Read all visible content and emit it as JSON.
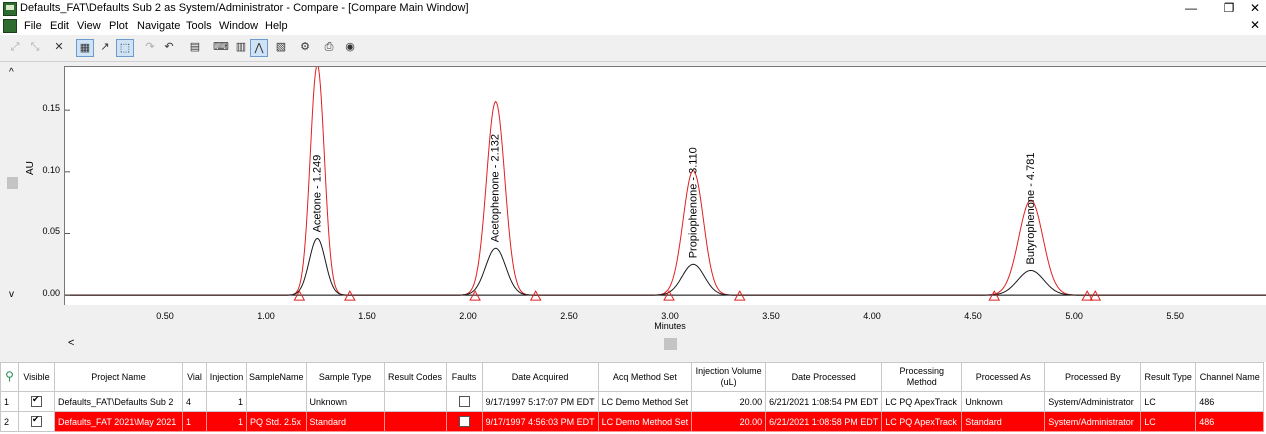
{
  "window": {
    "title": "Defaults_FAT\\Defaults Sub 2 as System/Administrator - Compare - [Compare Main Window]",
    "minimize": "—",
    "restore": "❐",
    "close": "✕"
  },
  "menu": {
    "items": [
      "File",
      "Edit",
      "View",
      "Plot",
      "Navigate",
      "Tools",
      "Window",
      "Help"
    ],
    "close": "✕"
  },
  "toolbar": {
    "buttons": [
      {
        "icon": "zoom-in-icon",
        "glyph": "⤢",
        "state": "disabled"
      },
      {
        "icon": "zoom-out-icon",
        "glyph": "⤡",
        "state": "disabled"
      },
      {
        "icon": "delete-icon",
        "glyph": "✕",
        "state": "normal"
      },
      {
        "icon": "overlay-icon",
        "glyph": "▦",
        "state": "on"
      },
      {
        "icon": "annotate-icon",
        "glyph": "↗",
        "state": "normal"
      },
      {
        "icon": "select-region-icon",
        "glyph": "⬚",
        "state": "on"
      },
      {
        "icon": "redo-icon",
        "glyph": "↷",
        "state": "disabled"
      },
      {
        "icon": "undo-icon",
        "glyph": "↶",
        "state": "normal"
      },
      {
        "icon": "grid-icon",
        "glyph": "▤",
        "state": "normal"
      },
      {
        "icon": "keyboard-icon",
        "glyph": "⌨",
        "state": "normal"
      },
      {
        "icon": "table-icon",
        "glyph": "▥",
        "state": "normal"
      },
      {
        "icon": "peak-icon",
        "glyph": "⋀",
        "state": "on"
      },
      {
        "icon": "layout-icon",
        "glyph": "▧",
        "state": "normal"
      },
      {
        "icon": "properties-icon",
        "glyph": "⚙",
        "state": "normal"
      },
      {
        "icon": "print-icon",
        "glyph": "⎙",
        "state": "normal"
      },
      {
        "icon": "export-icon",
        "glyph": "◉",
        "state": "normal"
      }
    ]
  },
  "chart_data": {
    "type": "line",
    "xlabel": "Minutes",
    "ylabel": "AU",
    "xlim": [
      0.0,
      5.95
    ],
    "ylim": [
      -0.008,
      0.185
    ],
    "x_ticks": [
      "0.50",
      "1.00",
      "1.50",
      "2.00",
      "2.50",
      "3.00",
      "3.50",
      "4.00",
      "4.50",
      "5.00",
      "5.50"
    ],
    "y_ticks": [
      "0.00",
      "0.05",
      "0.10",
      "0.15"
    ],
    "series": [
      {
        "color": "#e02020",
        "peaks": [
          {
            "rt": 1.249,
            "height": 0.187,
            "width": 0.035
          },
          {
            "rt": 2.132,
            "height": 0.157,
            "width": 0.045
          },
          {
            "rt": 3.11,
            "height": 0.101,
            "width": 0.05
          },
          {
            "rt": 4.781,
            "height": 0.077,
            "width": 0.06
          }
        ]
      },
      {
        "color": "#1a1a1a",
        "peaks": [
          {
            "rt": 1.249,
            "height": 0.046,
            "width": 0.04
          },
          {
            "rt": 2.132,
            "height": 0.038,
            "width": 0.05
          },
          {
            "rt": 3.11,
            "height": 0.025,
            "width": 0.055
          },
          {
            "rt": 4.781,
            "height": 0.02,
            "width": 0.065
          }
        ]
      }
    ],
    "peak_labels": [
      "Acetone - 1.249",
      "Acetophenone - 2.132",
      "Propiophenone - 3.110",
      "Butyrophenone - 4.781"
    ],
    "baseline_markers": [
      1.16,
      1.41,
      2.03,
      2.33,
      2.99,
      3.34,
      4.6,
      5.06,
      5.1
    ]
  },
  "grid": {
    "headers": [
      "Visible",
      "Project Name",
      "Vial",
      "Injection",
      "SampleName",
      "Sample Type",
      "Result Codes",
      "Faults",
      "Date Acquired",
      "Acq Method Set",
      "Injection Volume (uL)",
      "Date Processed",
      "Processing Method",
      "Processed As",
      "Processed By",
      "Result Type",
      "Channel Name"
    ],
    "rows": [
      {
        "row": "1",
        "visible": true,
        "project": "Defaults_FAT\\Defaults Sub 2",
        "vial": "4",
        "injection": "1",
        "sample_name": "",
        "sample_type": "Unknown",
        "result_codes": "",
        "faults": false,
        "date_acquired": "9/17/1997 5:17:07 PM EDT",
        "acq_method_set": "LC Demo Method Set",
        "injection_volume": "20.00",
        "date_processed": "6/21/2021 1:08:54 PM EDT",
        "processing_method": "LC PQ ApexTrack",
        "processed_as": "Unknown",
        "processed_by": "System/Administrator",
        "result_type": "LC",
        "channel_name": "486"
      },
      {
        "row": "2",
        "visible": true,
        "project": "Defaults_FAT 2021\\May 2021",
        "vial": "1",
        "injection": "1",
        "sample_name": "PQ Std. 2.5x",
        "sample_type": "Standard",
        "result_codes": "",
        "faults": false,
        "date_acquired": "9/17/1997 4:56:03 PM EDT",
        "acq_method_set": "LC Demo Method Set",
        "injection_volume": "20.00",
        "date_processed": "6/21/2021 1:08:58 PM EDT",
        "processing_method": "LC PQ ApexTrack",
        "processed_as": "Standard",
        "processed_by": "System/Administrator",
        "result_type": "LC",
        "channel_name": "486"
      }
    ]
  },
  "plot_nav": {
    "up": "^",
    "down": "v",
    "left": "<"
  }
}
